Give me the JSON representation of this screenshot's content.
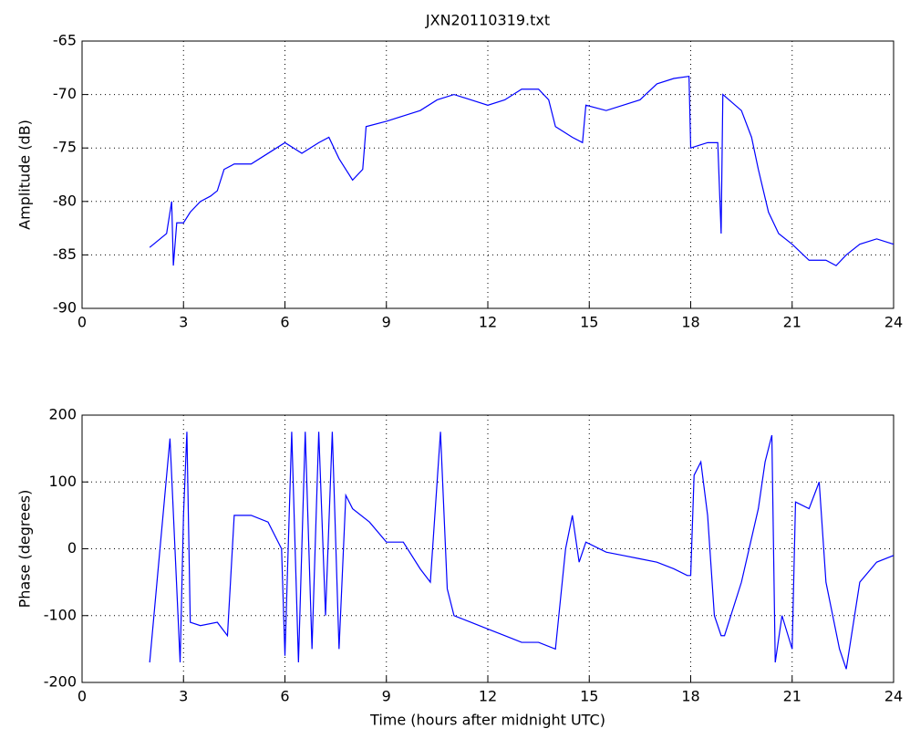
{
  "chart_data": [
    {
      "type": "line",
      "title": "JXN20110319.txt",
      "y_label": "Amplitude (dB)",
      "xlim": [
        0,
        24
      ],
      "xticks": [
        0,
        3,
        6,
        9,
        12,
        15,
        18,
        21,
        24
      ],
      "ylim": [
        -90,
        -65
      ],
      "yticks": [
        -90,
        -85,
        -80,
        -75,
        -70,
        -65
      ],
      "grid": true,
      "series": [
        {
          "name": "Amplitude",
          "color": "#0000ff",
          "x": [
            2.0,
            2.5,
            2.65,
            2.7,
            2.8,
            3.0,
            3.2,
            3.5,
            3.8,
            4.0,
            4.2,
            4.5,
            5.0,
            5.5,
            6.0,
            6.5,
            7.0,
            7.3,
            7.6,
            8.0,
            8.3,
            8.4,
            9.0,
            9.5,
            10.0,
            10.5,
            11.0,
            11.5,
            12.0,
            12.5,
            13.0,
            13.5,
            13.8,
            14.0,
            14.5,
            14.8,
            14.9,
            15.5,
            16.0,
            16.5,
            17.0,
            17.5,
            17.95,
            18.0,
            18.5,
            18.8,
            18.9,
            18.95,
            19.5,
            19.8,
            20.0,
            20.3,
            20.6,
            21.0,
            21.5,
            22.0,
            22.3,
            22.6,
            23.0,
            23.5,
            24.0
          ],
          "values": [
            -84.3,
            -83,
            -80,
            -86,
            -82,
            -82,
            -81,
            -80,
            -79.5,
            -79,
            -77,
            -76.5,
            -76.5,
            -75.5,
            -74.5,
            -75.5,
            -74.5,
            -74,
            -76,
            -78,
            -77,
            -73,
            -72.5,
            -72,
            -71.5,
            -70.5,
            -70,
            -70.5,
            -71,
            -70.5,
            -69.5,
            -69.5,
            -70.5,
            -73,
            -74,
            -74.5,
            -71,
            -71.5,
            -71,
            -70.5,
            -69,
            -68.5,
            -68.3,
            -75,
            -74.5,
            -74.5,
            -83,
            -70,
            -71.5,
            -74,
            -77,
            -81,
            -83,
            -84,
            -85.5,
            -85.5,
            -86,
            -85,
            -84,
            -83.5,
            -84
          ]
        }
      ]
    },
    {
      "type": "line",
      "x_label": "Time (hours after midnight UTC)",
      "y_label": "Phase (degrees)",
      "xlim": [
        0,
        24
      ],
      "xticks": [
        0,
        3,
        6,
        9,
        12,
        15,
        18,
        21,
        24
      ],
      "ylim": [
        -200,
        200
      ],
      "yticks": [
        -200,
        -100,
        0,
        100,
        200
      ],
      "grid": true,
      "series": [
        {
          "name": "Phase",
          "color": "#0000ff",
          "x": [
            2.0,
            2.6,
            2.9,
            3.0,
            3.1,
            3.2,
            3.5,
            4.0,
            4.3,
            4.5,
            5.0,
            5.5,
            5.9,
            6.0,
            6.2,
            6.4,
            6.6,
            6.8,
            7.0,
            7.2,
            7.4,
            7.6,
            7.8,
            8.0,
            8.5,
            9.0,
            9.5,
            10.0,
            10.3,
            10.6,
            10.8,
            11.0,
            11.5,
            12.0,
            12.5,
            13.0,
            13.5,
            14.0,
            14.1,
            14.3,
            14.5,
            14.7,
            14.9,
            15.5,
            16.0,
            16.5,
            17.0,
            17.5,
            17.9,
            18.0,
            18.1,
            18.3,
            18.5,
            18.7,
            18.9,
            19.0,
            19.5,
            20.0,
            20.2,
            20.4,
            20.5,
            20.7,
            21.0,
            21.1,
            21.5,
            21.8,
            22.0,
            22.2,
            22.4,
            22.6,
            23.0,
            23.5,
            24.0
          ],
          "values": [
            -170,
            165,
            -170,
            50,
            175,
            -110,
            -115,
            -110,
            -130,
            50,
            50,
            40,
            0,
            -160,
            175,
            -170,
            175,
            -150,
            175,
            -100,
            175,
            -150,
            80,
            60,
            40,
            10,
            10,
            -30,
            -50,
            175,
            -60,
            -100,
            -110,
            -120,
            -130,
            -140,
            -140,
            -150,
            -100,
            0,
            50,
            -20,
            10,
            -5,
            -10,
            -15,
            -20,
            -30,
            -40,
            -40,
            110,
            130,
            50,
            -100,
            -130,
            -130,
            -50,
            60,
            130,
            170,
            -170,
            -100,
            -150,
            70,
            60,
            100,
            -50,
            -100,
            -150,
            -180,
            -50,
            -20,
            -10
          ]
        }
      ]
    }
  ]
}
